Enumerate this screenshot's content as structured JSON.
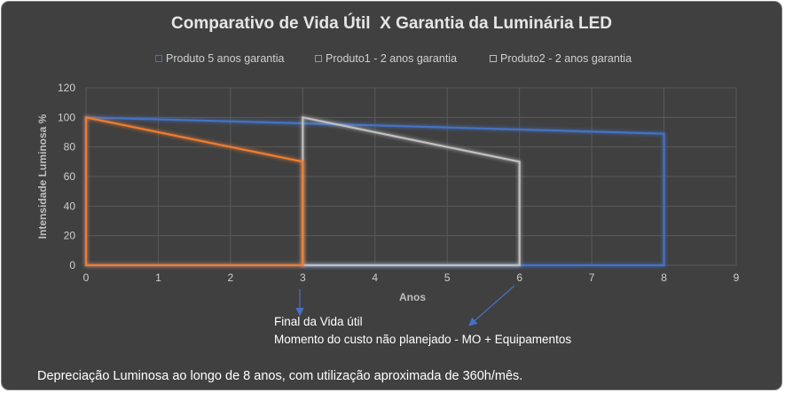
{
  "chart_data": {
    "type": "area",
    "title": "Comparativo de Vida Útil  X Garantia da Luminária LED",
    "xlabel": "Anos",
    "ylabel": "Intensidade Luminosa %",
    "xlim": [
      0,
      9
    ],
    "ylim": [
      0,
      120
    ],
    "xticks": [
      "0",
      "1",
      "2",
      "3",
      "4",
      "5",
      "6",
      "7",
      "8",
      "9"
    ],
    "yticks": [
      "0",
      "20",
      "40",
      "60",
      "80",
      "100",
      "120"
    ],
    "grid": true,
    "legend_position": "top",
    "series": [
      {
        "name": "Produto 5 anos garantia",
        "color": "#4472c4",
        "x": [
          0,
          3,
          8
        ],
        "y": [
          100,
          96,
          89
        ]
      },
      {
        "name": "Produto1 - 2 anos garantia",
        "color": "#ed7d31",
        "x": [
          0,
          3
        ],
        "y": [
          100,
          70
        ]
      },
      {
        "name": "Produto2 - 2 anos garantia",
        "color": "#bfbfbf",
        "x": [
          3,
          6
        ],
        "y": [
          100,
          70
        ]
      }
    ],
    "annotations": [
      "Final da Vida útil",
      "Momento do custo não planejado - MO + Equipamentos"
    ],
    "footer": "Depreciação Luminosa ao longo de 8 anos, com utilização aproximada de 360h/mês."
  },
  "colors": {
    "background": "#404040",
    "grid": "#595959",
    "text": "#cfcfcf",
    "arrow": "#4472c4"
  }
}
